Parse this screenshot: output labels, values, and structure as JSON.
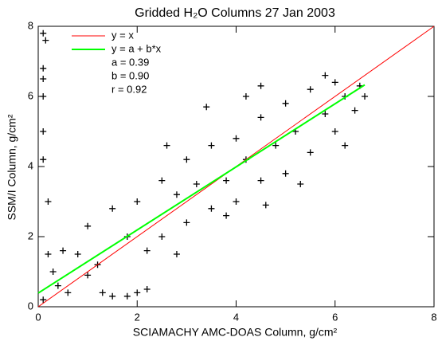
{
  "chart_data": {
    "type": "scatter",
    "title": "Gridded H₂O Columns 27 Jan 2003",
    "x_label": "SCIAMACHY AMC-DOAS Column, g/cm²",
    "y_label": "SSM/I Column, g/cm²",
    "xlim": [
      0,
      8
    ],
    "ylim": [
      0,
      8
    ],
    "xticks": [
      0,
      2,
      4,
      6,
      8
    ],
    "yticks": [
      0,
      2,
      4,
      6,
      8
    ],
    "points": {
      "color": "#000000",
      "x": [
        0.1,
        0.15,
        0.1,
        0.1,
        0.1,
        0.1,
        0.1,
        0.2,
        0.2,
        0.3,
        0.4,
        0.1,
        0.5,
        0.8,
        1.0,
        1.2,
        1.5,
        1.8,
        2.0,
        1.3,
        1.5,
        1.8,
        2.0,
        2.2,
        2.5,
        2.5,
        2.8,
        3.0,
        3.0,
        3.2,
        3.5,
        3.5,
        3.8,
        4.0,
        4.0,
        4.2,
        4.5,
        4.5,
        4.8,
        5.0,
        5.0,
        5.2,
        5.5,
        5.5,
        5.8,
        6.0,
        6.0,
        6.2,
        6.5,
        6.6,
        6.4,
        5.8,
        4.5,
        4.2,
        3.4,
        2.6,
        3.8,
        4.6,
        2.8,
        1.0,
        0.6,
        2.2,
        6.2,
        5.3
      ],
      "y": [
        7.8,
        7.6,
        6.8,
        6.5,
        6.0,
        5.0,
        4.2,
        3.0,
        1.5,
        1.0,
        0.6,
        0.2,
        1.6,
        1.5,
        2.3,
        1.2,
        0.3,
        0.3,
        0.4,
        0.4,
        2.8,
        2.0,
        3.0,
        1.6,
        3.6,
        2.0,
        3.2,
        2.4,
        4.2,
        3.5,
        4.6,
        2.8,
        3.6,
        4.8,
        3.0,
        4.2,
        5.4,
        3.6,
        4.6,
        5.8,
        3.8,
        5.0,
        6.2,
        4.4,
        5.5,
        6.4,
        5.0,
        6.0,
        6.3,
        6.0,
        5.6,
        6.6,
        6.3,
        6.0,
        5.7,
        4.6,
        2.6,
        2.9,
        1.5,
        0.9,
        0.4,
        0.5,
        4.6,
        3.5
      ]
    },
    "series": [
      {
        "name": "y = x",
        "color": "#ff0000",
        "x": [
          0,
          8
        ],
        "values": [
          0,
          8
        ]
      },
      {
        "name": "y = a + b*x",
        "color": "#00ff00",
        "x": [
          0,
          6.6
        ],
        "values": [
          0.39,
          6.33
        ]
      }
    ],
    "annotations": [
      "a =  0.39",
      "b =  0.90",
      "r =  0.92"
    ]
  }
}
